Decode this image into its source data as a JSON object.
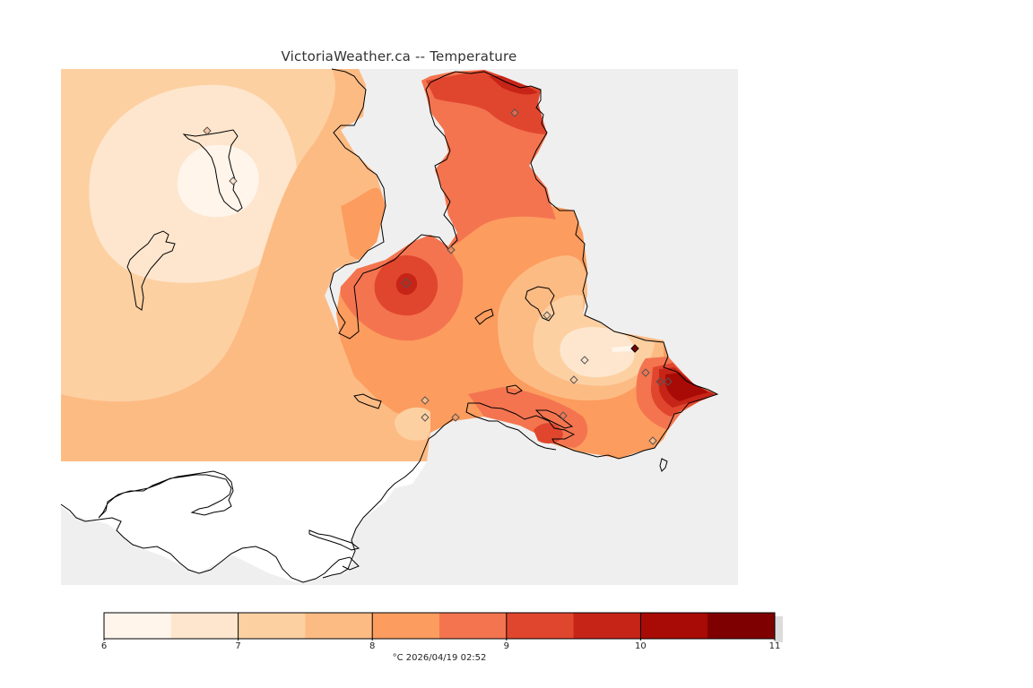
{
  "title": "VictoriaWeather.ca -- Temperature",
  "footer": {
    "unit": "°C",
    "timestamp": "2026/04/19 02:52"
  },
  "legend": {
    "min": 6,
    "max": 11,
    "labels": [
      "6",
      "7",
      "8",
      "9",
      "10",
      "11"
    ],
    "colors": [
      "#fff5eb",
      "#fee6ce",
      "#fdd0a2",
      "#fdbb84",
      "#fc9c5e",
      "#f47450",
      "#e0462e",
      "#c72418",
      "#a80b05",
      "#7f0000"
    ]
  },
  "map_colors": {
    "no_data": "#efefef",
    "land_outside": "#ffffff",
    "coast": "#000000"
  }
}
